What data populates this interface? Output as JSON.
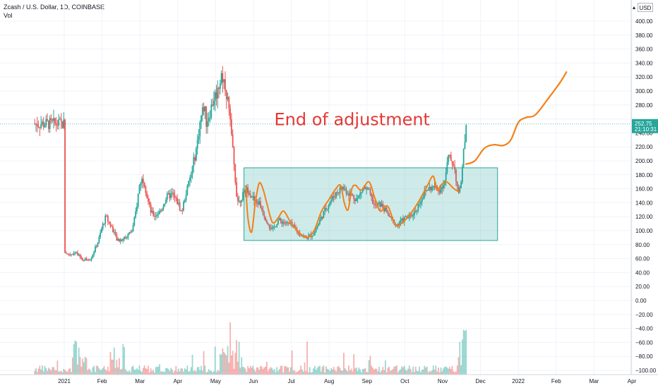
{
  "header": {
    "title": "Zcash / U.S. Dollar, 1D, COINBASE",
    "subtitle": "Vol"
  },
  "currency_button": "USD",
  "chart_data": {
    "type": "candlestick",
    "title": "Zcash / U.S. Dollar, 1D, COINBASE",
    "y_range": [
      -100,
      400
    ],
    "y_ticks": [
      -100,
      -80,
      -60,
      -40,
      -20,
      0,
      20,
      40,
      60,
      80,
      100,
      120,
      140,
      160,
      180,
      200,
      220,
      240,
      260,
      280,
      300,
      320,
      340,
      360,
      380,
      400
    ],
    "y_tick_labels": [
      "−100.00",
      "−80.00",
      "−60.00",
      "−40.00",
      "−20.00",
      "0.00",
      "20.00",
      "40.00",
      "60.00",
      "80.00",
      "100.00",
      "120.00",
      "140.00",
      "160.00",
      "180.00",
      "200.00",
      "220.00",
      "240.00",
      "260.00",
      "280.00",
      "300.00",
      "320.00",
      "340.00",
      "360.00",
      "380.00",
      "400.00"
    ],
    "x_tick_labels": [
      "2021",
      "Feb",
      "Mar",
      "Apr",
      "May",
      "Jun",
      "Jul",
      "Aug",
      "Sep",
      "Oct",
      "Nov",
      "Dec",
      "2022",
      "Feb",
      "Mar",
      "Apr"
    ],
    "x_tick_months": [
      0,
      1,
      2,
      3,
      4,
      5,
      6,
      7,
      8,
      9,
      10,
      11,
      12,
      13,
      14,
      15
    ],
    "price_path": [
      [
        0.0,
        70
      ],
      [
        0.1,
        66
      ],
      [
        0.3,
        68
      ],
      [
        0.5,
        58
      ],
      [
        0.7,
        60
      ],
      [
        0.9,
        85
      ],
      [
        1.0,
        105
      ],
      [
        1.1,
        120
      ],
      [
        1.2,
        110
      ],
      [
        1.3,
        100
      ],
      [
        1.4,
        85
      ],
      [
        1.6,
        90
      ],
      [
        1.8,
        100
      ],
      [
        1.9,
        130
      ],
      [
        2.0,
        170
      ],
      [
        2.1,
        175
      ],
      [
        2.2,
        145
      ],
      [
        2.3,
        125
      ],
      [
        2.4,
        122
      ],
      [
        2.55,
        128
      ],
      [
        2.7,
        148
      ],
      [
        2.85,
        152
      ],
      [
        3.0,
        140
      ],
      [
        3.1,
        126
      ],
      [
        3.2,
        150
      ],
      [
        3.35,
        180
      ],
      [
        3.5,
        220
      ],
      [
        3.6,
        260
      ],
      [
        3.7,
        280
      ],
      [
        3.75,
        255
      ],
      [
        3.85,
        270
      ],
      [
        3.95,
        290
      ],
      [
        4.05,
        300
      ],
      [
        4.15,
        325
      ],
      [
        4.25,
        310
      ],
      [
        4.35,
        275
      ],
      [
        4.45,
        215
      ],
      [
        4.55,
        155
      ],
      [
        4.6,
        140
      ],
      [
        4.7,
        150
      ],
      [
        4.85,
        160
      ],
      [
        4.95,
        150
      ],
      [
        5.05,
        140
      ],
      [
        5.15,
        140
      ],
      [
        5.3,
        120
      ],
      [
        5.4,
        110
      ],
      [
        5.5,
        100
      ],
      [
        5.65,
        115
      ],
      [
        5.8,
        112
      ],
      [
        6.0,
        108
      ],
      [
        6.2,
        96
      ],
      [
        6.4,
        90
      ],
      [
        6.6,
        96
      ],
      [
        6.8,
        120
      ],
      [
        7.0,
        140
      ],
      [
        7.2,
        155
      ],
      [
        7.35,
        162
      ],
      [
        7.5,
        155
      ],
      [
        7.6,
        150
      ],
      [
        7.75,
        145
      ],
      [
        7.9,
        162
      ],
      [
        8.05,
        155
      ],
      [
        8.2,
        135
      ],
      [
        8.35,
        138
      ],
      [
        8.5,
        128
      ],
      [
        8.65,
        115
      ],
      [
        8.8,
        108
      ],
      [
        9.0,
        118
      ],
      [
        9.15,
        120
      ],
      [
        9.3,
        130
      ],
      [
        9.45,
        148
      ],
      [
        9.6,
        160
      ],
      [
        9.75,
        162
      ],
      [
        9.9,
        158
      ],
      [
        10.05,
        170
      ],
      [
        10.15,
        205
      ],
      [
        10.3,
        195
      ],
      [
        10.42,
        150
      ],
      [
        10.5,
        175
      ],
      [
        10.58,
        230
      ],
      [
        10.62,
        253
      ]
    ],
    "last_price": 252.75,
    "last_price_label": "252.75",
    "countdown_label": "21:10:31",
    "rectangle": {
      "x_start": 4.75,
      "x_end": 11.45,
      "y_low": 86,
      "y_high": 190
    },
    "projection": [
      [
        10.6,
        195
      ],
      [
        10.85,
        200
      ],
      [
        11.1,
        218
      ],
      [
        11.35,
        223
      ],
      [
        11.6,
        222
      ],
      [
        11.8,
        230
      ],
      [
        12.0,
        255
      ],
      [
        12.2,
        262
      ],
      [
        12.45,
        266
      ],
      [
        12.8,
        290
      ],
      [
        13.1,
        312
      ],
      [
        13.28,
        328
      ]
    ],
    "wave_overlay": [
      [
        4.8,
        165
      ],
      [
        4.85,
        120
      ],
      [
        4.95,
        98
      ],
      [
        5.05,
        140
      ],
      [
        5.15,
        168
      ],
      [
        5.25,
        160
      ],
      [
        5.35,
        140
      ],
      [
        5.5,
        112
      ],
      [
        5.65,
        118
      ],
      [
        5.8,
        128
      ],
      [
        6.0,
        110
      ],
      [
        6.2,
        98
      ],
      [
        6.4,
        90
      ],
      [
        6.6,
        100
      ],
      [
        6.8,
        128
      ],
      [
        7.0,
        145
      ],
      [
        7.15,
        158
      ],
      [
        7.3,
        165
      ],
      [
        7.4,
        140
      ],
      [
        7.5,
        130
      ],
      [
        7.6,
        160
      ],
      [
        7.7,
        165
      ],
      [
        7.85,
        158
      ],
      [
        8.05,
        170
      ],
      [
        8.2,
        148
      ],
      [
        8.35,
        128
      ],
      [
        8.55,
        135
      ],
      [
        8.75,
        108
      ],
      [
        8.95,
        112
      ],
      [
        9.2,
        128
      ],
      [
        9.4,
        145
      ],
      [
        9.6,
        165
      ],
      [
        9.75,
        178
      ],
      [
        9.85,
        158
      ],
      [
        9.95,
        165
      ],
      [
        10.1,
        170
      ],
      [
        10.3,
        160
      ],
      [
        10.45,
        155
      ]
    ],
    "annotation": "End of adjustment",
    "colors": {
      "up": "#26a69a",
      "down": "#ef5350",
      "box_fill": "#26a69a",
      "projection": "#f57f17",
      "annotation": "#e53935"
    }
  }
}
